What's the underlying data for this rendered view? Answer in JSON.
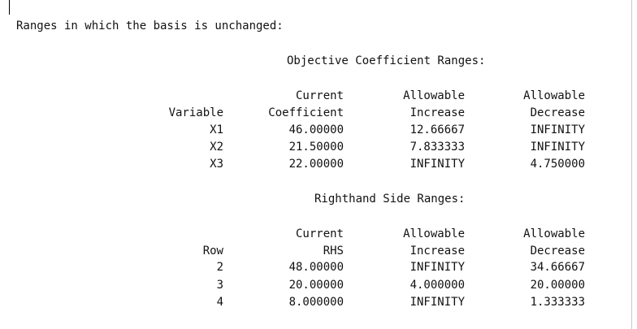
{
  "report": {
    "heading": "Ranges in which the basis is unchanged:",
    "objective": {
      "title": "Objective Coefficient Ranges:",
      "header_top": [
        "",
        "Current",
        "Allowable",
        "Allowable"
      ],
      "header_bottom": [
        "Variable",
        "Coefficient",
        "Increase",
        "Decrease"
      ],
      "rows": [
        [
          "X1",
          "46.00000",
          "12.66667",
          "INFINITY"
        ],
        [
          "X2",
          "21.50000",
          "7.833333",
          "INFINITY"
        ],
        [
          "X3",
          "22.00000",
          "INFINITY",
          "4.750000"
        ]
      ]
    },
    "rhs": {
      "title": "Righthand Side Ranges:",
      "header_top": [
        "",
        "Current",
        "Allowable",
        "Allowable"
      ],
      "header_bottom": [
        "Row",
        "RHS",
        "Increase",
        "Decrease"
      ],
      "rows": [
        [
          "2",
          "48.00000",
          "INFINITY",
          "34.66667"
        ],
        [
          "3",
          "20.00000",
          "4.000000",
          "20.00000"
        ],
        [
          "4",
          "8.000000",
          "INFINITY",
          "1.333333"
        ]
      ]
    }
  }
}
